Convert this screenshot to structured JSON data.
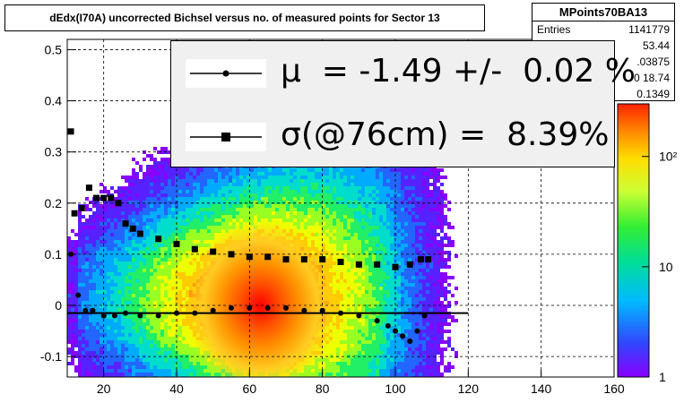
{
  "title": "dEdx(I70A) uncorrected Bichsel versus no. of measured points for Sector 13",
  "stats": {
    "name": "MPoints70BA13",
    "rows": [
      {
        "label": "Entries",
        "value": "1141779"
      },
      {
        "label": "",
        "value": "53.44"
      },
      {
        "label": "",
        "value": ".03875"
      },
      {
        "label": "",
        "value": "0 18.74"
      },
      {
        "label": "",
        "value": "0.1349"
      }
    ]
  },
  "legend": {
    "mu_text": "μ  = -1.49 +/-  0.02 %",
    "sigma_text": "σ(@76cm) =  8.39%"
  },
  "chart_data": {
    "type": "heatmap",
    "xlim": [
      10,
      160
    ],
    "ylim": [
      -0.14,
      0.52
    ],
    "x_ticks": [
      20,
      40,
      60,
      80,
      100,
      120,
      140,
      160
    ],
    "y_ticks": [
      -0.1,
      0,
      0.1,
      0.2,
      0.3,
      0.4,
      0.5
    ],
    "y_tick_labels": [
      "-0.1",
      "0",
      "0.1",
      "0.2",
      "0.3",
      "0.4",
      "0.5"
    ],
    "grid": true,
    "colorbar": {
      "scale": "log",
      "ticks": [
        1,
        10,
        100
      ],
      "tick_labels": [
        "1",
        "10",
        "10²"
      ]
    },
    "series": [
      {
        "name": "mu",
        "marker": "circle",
        "x": [
          11,
          13,
          15,
          17,
          20,
          23,
          26,
          30,
          35,
          40,
          45,
          50,
          55,
          60,
          65,
          70,
          75,
          80,
          85,
          90,
          95,
          98,
          100,
          102,
          104,
          106,
          108
        ],
        "y": [
          0.1,
          0.02,
          -0.01,
          -0.01,
          -0.02,
          -0.02,
          -0.015,
          -0.02,
          -0.02,
          -0.015,
          -0.015,
          -0.01,
          -0.005,
          -0.005,
          -0.005,
          -0.005,
          -0.01,
          -0.01,
          -0.015,
          -0.02,
          -0.03,
          -0.04,
          -0.05,
          -0.06,
          -0.07,
          -0.05,
          -0.02
        ]
      },
      {
        "name": "sigma",
        "marker": "square",
        "x": [
          11,
          12,
          14,
          16,
          18,
          20,
          22,
          24,
          26,
          28,
          30,
          35,
          40,
          45,
          50,
          55,
          60,
          65,
          70,
          75,
          80,
          85,
          90,
          95,
          100,
          104,
          107,
          109
        ],
        "y": [
          0.34,
          0.18,
          0.19,
          0.23,
          0.21,
          0.21,
          0.21,
          0.2,
          0.16,
          0.15,
          0.14,
          0.13,
          0.12,
          0.11,
          0.105,
          0.1,
          0.095,
          0.095,
          0.09,
          0.09,
          0.09,
          0.085,
          0.08,
          0.08,
          0.075,
          0.08,
          0.09,
          0.09
        ]
      }
    ],
    "fit_line": {
      "x": [
        10,
        120
      ],
      "y": [
        -0.015,
        -0.015
      ]
    }
  }
}
